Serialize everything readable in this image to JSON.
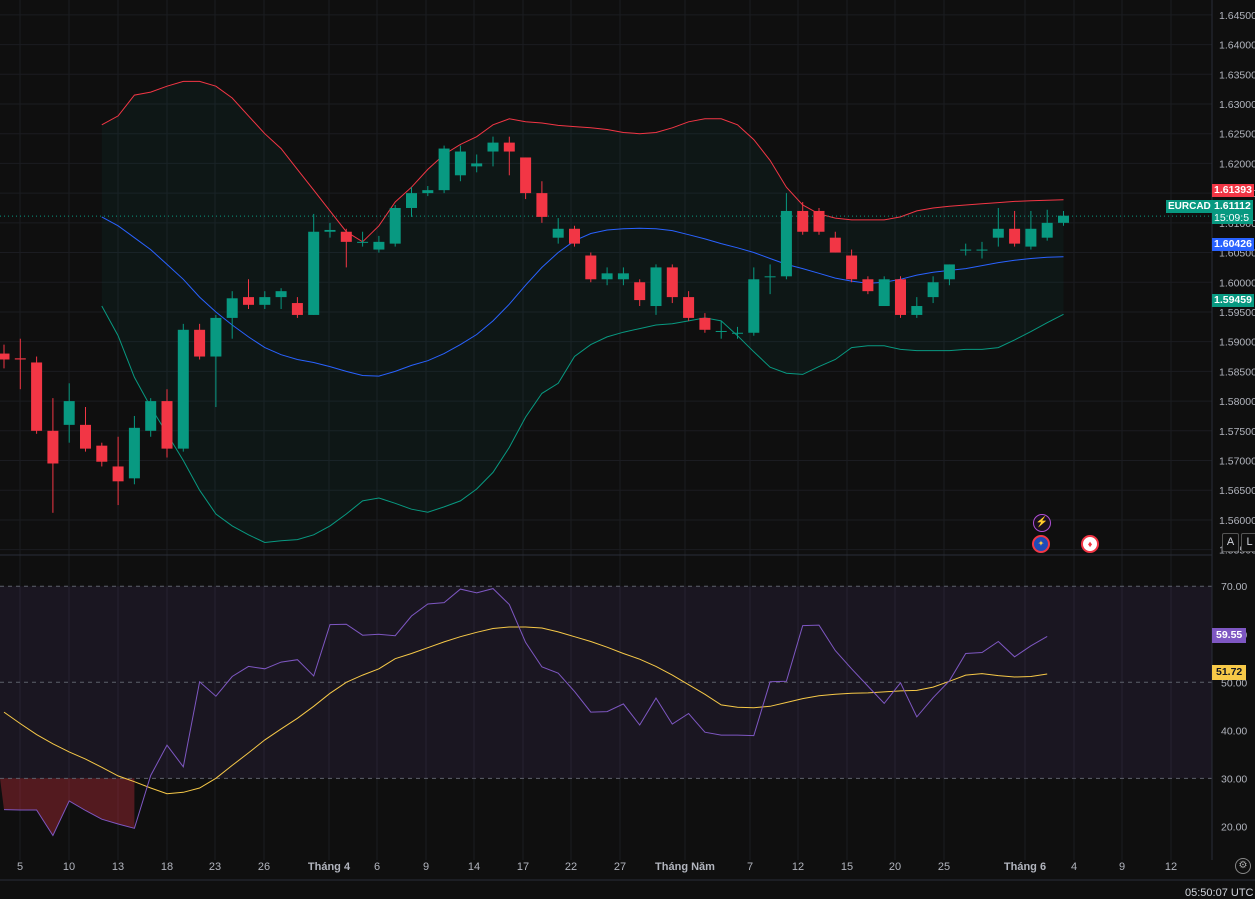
{
  "symbol": "EURCAD",
  "last_price_label": "1.61112",
  "countdown_label": "15:09:5",
  "bb_upper_label": "1.61393",
  "bb_basis_label": "1.60426",
  "bb_lower_label": "1.59459",
  "rsi_label": "59.55",
  "rsi_ma_label": "51.72",
  "utc_time": "05:50:07 UTC",
  "scale_buttons": [
    "A",
    "L"
  ],
  "icons": {
    "flash": "lightning-icon",
    "event_eu": "eu-flag-icon",
    "event_ca": "canada-flag-icon",
    "settings": "gear-icon"
  },
  "colors": {
    "up": "#089981",
    "down": "#f23645",
    "bb_upper": "#f23645",
    "bb_basis": "#2962ff",
    "bb_lower": "#089981",
    "rsi": "#7e57c2",
    "rsi_ma": "#f7c948"
  },
  "chart_data": [
    {
      "type": "candlestick",
      "price_axis_ticks": [
        "1.64500",
        "1.64000",
        "1.63500",
        "1.63000",
        "1.62500",
        "1.62000",
        "1.61500",
        "1.61000",
        "1.60500",
        "1.60000",
        "1.59500",
        "1.59000",
        "1.58500",
        "1.58000",
        "1.57500",
        "1.57000",
        "1.56500",
        "1.56000",
        "1.55500"
      ],
      "ylim": [
        1.5541,
        1.6475
      ],
      "time_axis_labels": [
        "5",
        "10",
        "13",
        "18",
        "23",
        "26",
        "Tháng 4",
        "6",
        "9",
        "14",
        "17",
        "22",
        "27",
        "Tháng Năm",
        "7",
        "12",
        "15",
        "20",
        "25",
        "Tháng 6",
        "4",
        "9",
        "12"
      ],
      "candles": [
        {
          "o": 1.588,
          "h": 1.5895,
          "l": 1.5855,
          "c": 1.587
        },
        {
          "o": 1.5872,
          "h": 1.5905,
          "l": 1.582,
          "c": 1.587
        },
        {
          "o": 1.5865,
          "h": 1.5875,
          "l": 1.5745,
          "c": 1.575
        },
        {
          "o": 1.575,
          "h": 1.5805,
          "l": 1.5612,
          "c": 1.5695
        },
        {
          "o": 1.576,
          "h": 1.583,
          "l": 1.573,
          "c": 1.58
        },
        {
          "o": 1.576,
          "h": 1.579,
          "l": 1.5715,
          "c": 1.572
        },
        {
          "o": 1.5725,
          "h": 1.573,
          "l": 1.569,
          "c": 1.5698
        },
        {
          "o": 1.569,
          "h": 1.574,
          "l": 1.5625,
          "c": 1.5665
        },
        {
          "o": 1.567,
          "h": 1.5775,
          "l": 1.566,
          "c": 1.5755
        },
        {
          "o": 1.575,
          "h": 1.5805,
          "l": 1.574,
          "c": 1.58
        },
        {
          "o": 1.58,
          "h": 1.582,
          "l": 1.5705,
          "c": 1.572
        },
        {
          "o": 1.572,
          "h": 1.593,
          "l": 1.5715,
          "c": 1.592
        },
        {
          "o": 1.592,
          "h": 1.593,
          "l": 1.587,
          "c": 1.5875
        },
        {
          "o": 1.5875,
          "h": 1.5945,
          "l": 1.579,
          "c": 1.594
        },
        {
          "o": 1.594,
          "h": 1.5985,
          "l": 1.5905,
          "c": 1.5973
        },
        {
          "o": 1.5975,
          "h": 1.6005,
          "l": 1.5955,
          "c": 1.5962
        },
        {
          "o": 1.5962,
          "h": 1.5985,
          "l": 1.5955,
          "c": 1.5975
        },
        {
          "o": 1.5975,
          "h": 1.599,
          "l": 1.5955,
          "c": 1.5985
        },
        {
          "o": 1.5965,
          "h": 1.5975,
          "l": 1.594,
          "c": 1.5945
        },
        {
          "o": 1.5945,
          "h": 1.6115,
          "l": 1.5945,
          "c": 1.6085
        },
        {
          "o": 1.6085,
          "h": 1.61,
          "l": 1.6075,
          "c": 1.6088
        },
        {
          "o": 1.6085,
          "h": 1.609,
          "l": 1.6025,
          "c": 1.6068
        },
        {
          "o": 1.6068,
          "h": 1.6085,
          "l": 1.606,
          "c": 1.6068
        },
        {
          "o": 1.6055,
          "h": 1.6078,
          "l": 1.605,
          "c": 1.6068
        },
        {
          "o": 1.6065,
          "h": 1.613,
          "l": 1.606,
          "c": 1.6125
        },
        {
          "o": 1.6125,
          "h": 1.616,
          "l": 1.611,
          "c": 1.615
        },
        {
          "o": 1.615,
          "h": 1.6162,
          "l": 1.6145,
          "c": 1.6155
        },
        {
          "o": 1.6155,
          "h": 1.623,
          "l": 1.615,
          "c": 1.6225
        },
        {
          "o": 1.618,
          "h": 1.623,
          "l": 1.617,
          "c": 1.622
        },
        {
          "o": 1.6195,
          "h": 1.6215,
          "l": 1.6185,
          "c": 1.62
        },
        {
          "o": 1.622,
          "h": 1.6245,
          "l": 1.6195,
          "c": 1.6235
        },
        {
          "o": 1.6235,
          "h": 1.6245,
          "l": 1.618,
          "c": 1.622
        },
        {
          "o": 1.621,
          "h": 1.621,
          "l": 1.614,
          "c": 1.615
        },
        {
          "o": 1.615,
          "h": 1.617,
          "l": 1.61,
          "c": 1.611
        },
        {
          "o": 1.6075,
          "h": 1.6108,
          "l": 1.6065,
          "c": 1.609
        },
        {
          "o": 1.609,
          "h": 1.6095,
          "l": 1.606,
          "c": 1.6065
        },
        {
          "o": 1.6045,
          "h": 1.605,
          "l": 1.6,
          "c": 1.6005
        },
        {
          "o": 1.6005,
          "h": 1.6025,
          "l": 1.5995,
          "c": 1.6015
        },
        {
          "o": 1.6005,
          "h": 1.6025,
          "l": 1.5995,
          "c": 1.6015
        },
        {
          "o": 1.6,
          "h": 1.6005,
          "l": 1.596,
          "c": 1.597
        },
        {
          "o": 1.596,
          "h": 1.603,
          "l": 1.5945,
          "c": 1.6025
        },
        {
          "o": 1.6025,
          "h": 1.603,
          "l": 1.5965,
          "c": 1.5975
        },
        {
          "o": 1.5975,
          "h": 1.5985,
          "l": 1.5935,
          "c": 1.594
        },
        {
          "o": 1.594,
          "h": 1.5948,
          "l": 1.5915,
          "c": 1.592
        },
        {
          "o": 1.5918,
          "h": 1.5935,
          "l": 1.5905,
          "c": 1.5918
        },
        {
          "o": 1.5915,
          "h": 1.5925,
          "l": 1.5905,
          "c": 1.5915
        },
        {
          "o": 1.5915,
          "h": 1.6025,
          "l": 1.591,
          "c": 1.6005
        },
        {
          "o": 1.601,
          "h": 1.603,
          "l": 1.598,
          "c": 1.601
        },
        {
          "o": 1.601,
          "h": 1.615,
          "l": 1.6005,
          "c": 1.612
        },
        {
          "o": 1.612,
          "h": 1.6135,
          "l": 1.608,
          "c": 1.6085
        },
        {
          "o": 1.612,
          "h": 1.6125,
          "l": 1.608,
          "c": 1.6085
        },
        {
          "o": 1.6075,
          "h": 1.6085,
          "l": 1.605,
          "c": 1.605
        },
        {
          "o": 1.6045,
          "h": 1.6055,
          "l": 1.6,
          "c": 1.6005
        },
        {
          "o": 1.6005,
          "h": 1.601,
          "l": 1.598,
          "c": 1.5985
        },
        {
          "o": 1.596,
          "h": 1.601,
          "l": 1.596,
          "c": 1.6005
        },
        {
          "o": 1.6005,
          "h": 1.601,
          "l": 1.594,
          "c": 1.5945
        },
        {
          "o": 1.5945,
          "h": 1.5975,
          "l": 1.594,
          "c": 1.596
        },
        {
          "o": 1.5975,
          "h": 1.601,
          "l": 1.5965,
          "c": 1.6
        },
        {
          "o": 1.6005,
          "h": 1.603,
          "l": 1.5995,
          "c": 1.603
        },
        {
          "o": 1.6055,
          "h": 1.6065,
          "l": 1.6045,
          "c": 1.6055
        },
        {
          "o": 1.6055,
          "h": 1.6068,
          "l": 1.604,
          "c": 1.6055
        },
        {
          "o": 1.6075,
          "h": 1.6125,
          "l": 1.606,
          "c": 1.609
        },
        {
          "o": 1.609,
          "h": 1.612,
          "l": 1.606,
          "c": 1.6065
        },
        {
          "o": 1.606,
          "h": 1.612,
          "l": 1.6055,
          "c": 1.609
        },
        {
          "o": 1.6075,
          "h": 1.6122,
          "l": 1.607,
          "c": 1.61
        },
        {
          "o": 1.61,
          "h": 1.612,
          "l": 1.6095,
          "c": 1.6112
        }
      ],
      "bollinger": {
        "upper": [
          1.6265,
          1.628,
          1.6315,
          1.632,
          1.633,
          1.6338,
          1.6338,
          1.633,
          1.631,
          1.628,
          1.625,
          1.6225,
          1.619,
          1.6155,
          1.612,
          1.6085,
          1.6068,
          1.6095,
          1.6135,
          1.616,
          1.619,
          1.6215,
          1.6232,
          1.6245,
          1.6265,
          1.6275,
          1.627,
          1.6268,
          1.6264,
          1.6262,
          1.626,
          1.6257,
          1.6252,
          1.625,
          1.6252,
          1.626,
          1.627,
          1.6275,
          1.6275,
          1.6265,
          1.624,
          1.6205,
          1.616,
          1.613,
          1.6115,
          1.6108,
          1.6105,
          1.6105,
          1.6105,
          1.611,
          1.612,
          1.6125,
          1.6128,
          1.613,
          1.6132,
          1.6134,
          1.6136,
          1.6137,
          1.6138,
          1.6139
        ],
        "basis": [
          1.611,
          1.6095,
          1.6075,
          1.6055,
          1.603,
          1.6005,
          1.5975,
          1.595,
          1.5928,
          1.5908,
          1.589,
          1.5878,
          1.587,
          1.5865,
          1.5858,
          1.585,
          1.5843,
          1.5842,
          1.585,
          1.586,
          1.5868,
          1.588,
          1.5895,
          1.5912,
          1.5935,
          1.5963,
          1.5995,
          1.6025,
          1.605,
          1.607,
          1.6082,
          1.6088,
          1.609,
          1.6091,
          1.609,
          1.6087,
          1.608,
          1.6073,
          1.6065,
          1.6058,
          1.605,
          1.604,
          1.603,
          1.6023,
          1.6015,
          1.6007,
          1.6002,
          1.5998,
          1.6,
          1.6005,
          1.6012,
          1.6017,
          1.602,
          1.6023,
          1.6028,
          1.6033,
          1.6037,
          1.604,
          1.6042,
          1.6043
        ],
        "lower": [
          1.596,
          1.591,
          1.584,
          1.579,
          1.5745,
          1.57,
          1.565,
          1.561,
          1.559,
          1.5575,
          1.5562,
          1.5565,
          1.5567,
          1.5575,
          1.559,
          1.561,
          1.5632,
          1.5637,
          1.5628,
          1.5618,
          1.5613,
          1.5622,
          1.5632,
          1.5652,
          1.568,
          1.5722,
          1.5773,
          1.5813,
          1.583,
          1.5875,
          1.5895,
          1.5908,
          1.5916,
          1.5922,
          1.5928,
          1.593,
          1.5935,
          1.594,
          1.5935,
          1.591,
          1.5883,
          1.5857,
          1.5847,
          1.5845,
          1.5858,
          1.587,
          1.589,
          1.5893,
          1.5893,
          1.5887,
          1.5885,
          1.5885,
          1.5885,
          1.5887,
          1.5887,
          1.589,
          1.5903,
          1.5917,
          1.5932,
          1.5946
        ]
      }
    },
    {
      "type": "line",
      "indicator": "RSI",
      "y_axis_ticks": [
        "70.00",
        "60.00",
        "50.00",
        "40.00",
        "30.00",
        "20.00"
      ],
      "ylim": [
        13.0,
        76.5
      ],
      "levels": {
        "upper": 70,
        "middle": 50,
        "lower": 30
      },
      "series": [
        {
          "values": [
            23.5,
            23.4,
            23.4,
            18.1,
            25.3,
            23.3,
            21.5,
            20.5,
            19.6,
            30.6,
            36.9,
            32.4,
            50.1,
            47.1,
            51.2,
            53.3,
            52.8,
            54.2,
            54.7,
            51.3,
            62.0,
            62.1,
            59.8,
            60.0,
            59.7,
            63.8,
            66.3,
            66.6,
            69.4,
            68.6,
            69.5,
            66.2,
            58.3,
            53.2,
            51.9,
            48.1,
            43.8,
            43.9,
            45.5,
            41.1,
            46.7,
            41.3,
            43.5,
            39.6,
            39.0,
            39.0,
            38.9,
            50.1,
            50.2,
            61.8,
            61.9,
            56.6,
            52.8,
            49.2,
            45.6,
            49.9,
            42.8,
            46.8,
            50.3,
            56.0,
            56.2,
            58.5,
            55.3,
            57.6,
            59.55
          ]
        },
        {
          "values": [
            43.8,
            41.4,
            39.1,
            37.2,
            35.5,
            34.0,
            32.3,
            30.5,
            29.3,
            28.0,
            26.8,
            27.1,
            28.0,
            30.0,
            32.7,
            35.3,
            38.0,
            40.3,
            42.5,
            45.0,
            47.7,
            50.0,
            51.5,
            52.8,
            54.9,
            56.0,
            57.2,
            58.4,
            59.5,
            60.4,
            61.2,
            61.5,
            61.5,
            61.3,
            60.5,
            59.5,
            58.5,
            57.3,
            56.0,
            54.8,
            53.3,
            51.5,
            49.5,
            47.5,
            45.3,
            44.8,
            44.7,
            45.0,
            45.8,
            46.6,
            47.2,
            47.5,
            47.7,
            47.8,
            48.0,
            48.2,
            48.3,
            49.0,
            50.2,
            51.5,
            51.8,
            51.4,
            51.1,
            51.2,
            51.72
          ]
        }
      ],
      "time_axis_labels": [
        "5",
        "10",
        "13",
        "18",
        "23",
        "26",
        "Tháng 4",
        "6",
        "9",
        "14",
        "17",
        "22",
        "27",
        "Tháng Năm",
        "7",
        "12",
        "15",
        "20",
        "25",
        "Tháng 6",
        "4",
        "9",
        "12"
      ]
    }
  ]
}
